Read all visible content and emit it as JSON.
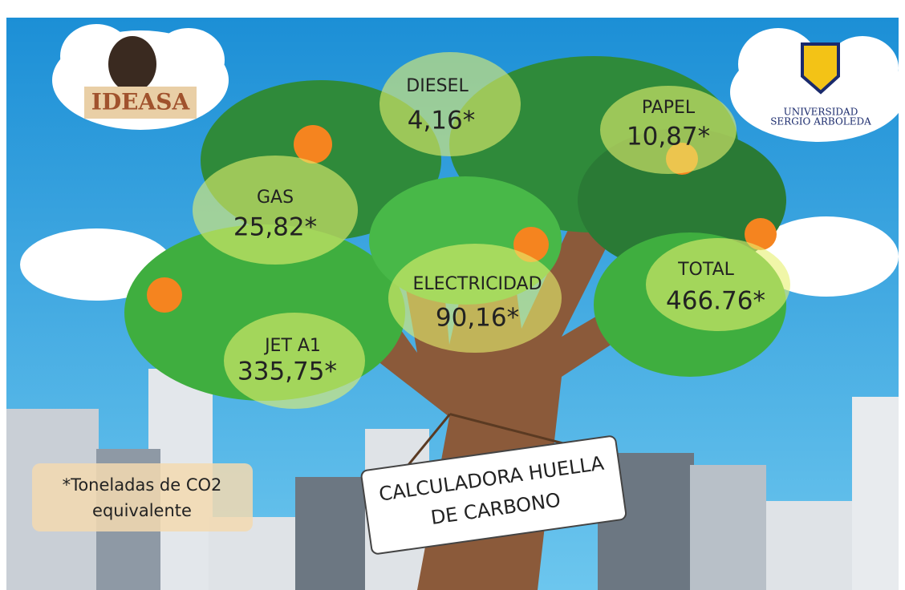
{
  "logos": {
    "left": "IDEASA",
    "right": [
      "UNIVERSIDAD",
      "SERGIO ARBOLEDA"
    ]
  },
  "bubbles": [
    {
      "label": "DIESEL",
      "value": "4,16*"
    },
    {
      "label": "PAPEL",
      "value": "10,87*"
    },
    {
      "label": "GAS",
      "value": "25,82*"
    },
    {
      "label": "ELECTRICIDAD",
      "value": "90,16*"
    },
    {
      "label": "TOTAL",
      "value": "466.76*"
    },
    {
      "label": "JET A1",
      "value": "335,75*"
    }
  ],
  "footnote": [
    "*Toneladas de CO2",
    "equivalente"
  ],
  "sign": [
    "CALCULADORA HUELLA",
    "DE CARBONO"
  ]
}
